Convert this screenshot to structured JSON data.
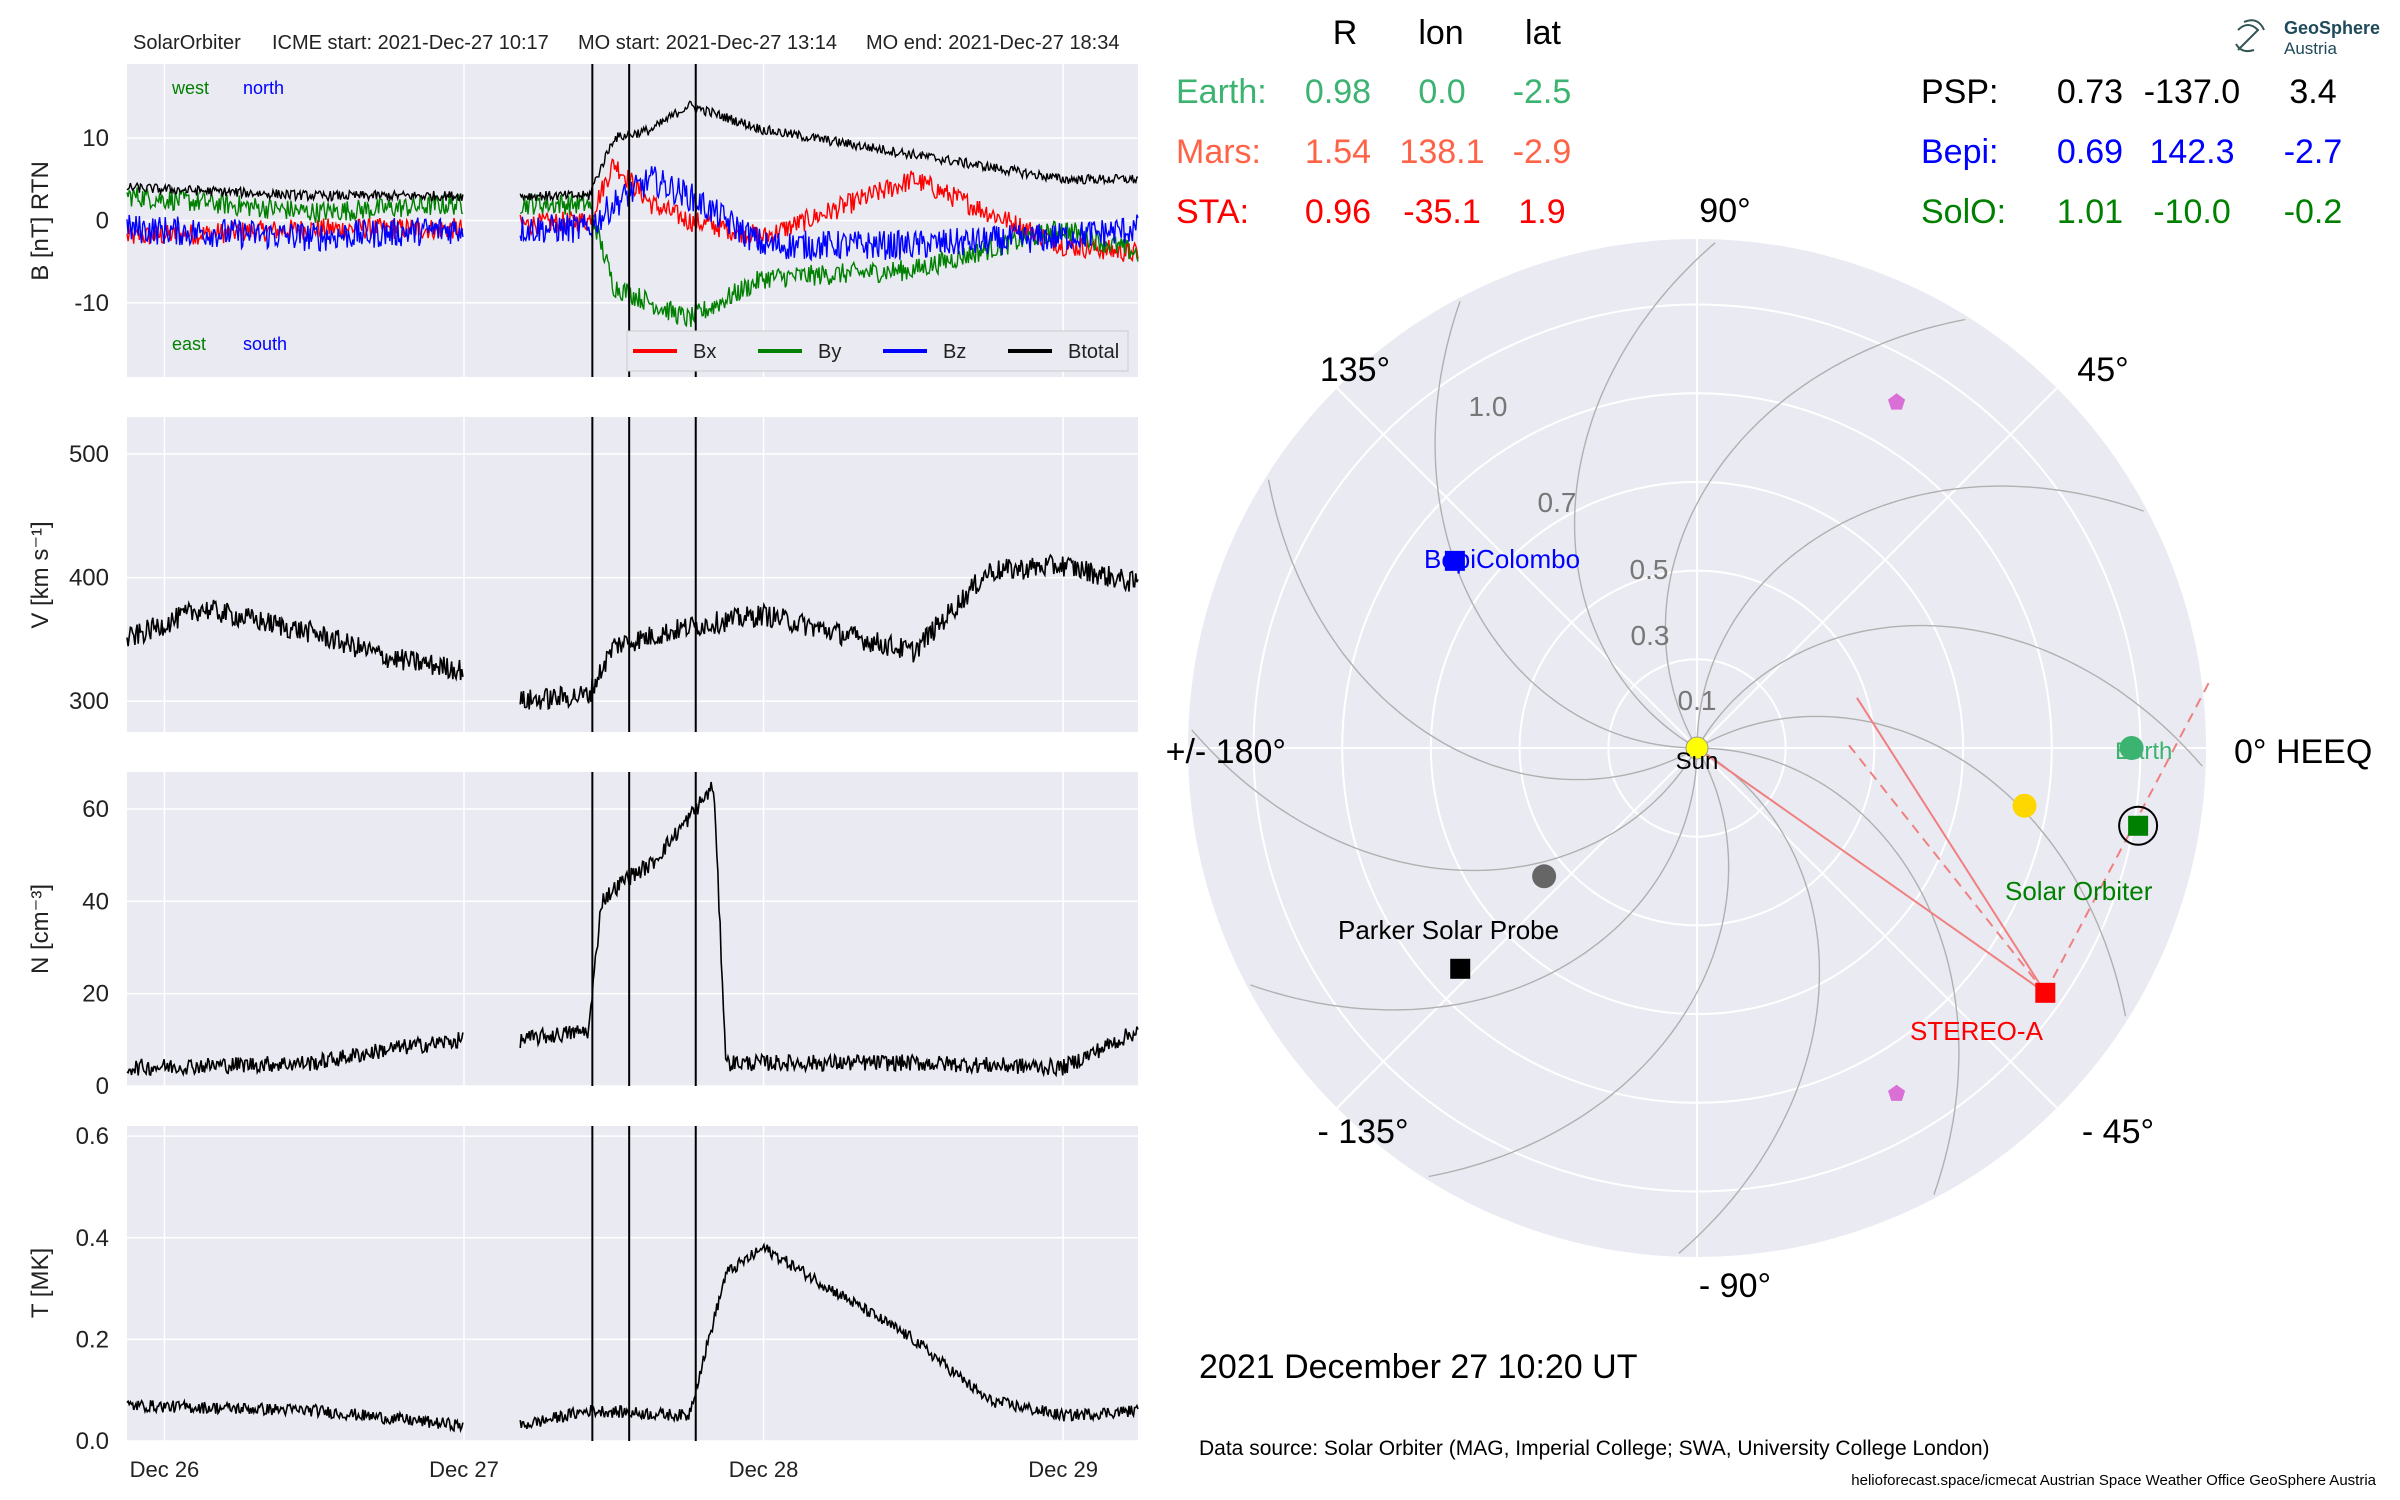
{
  "colors": {
    "bx": "#ff0000",
    "by": "#008000",
    "bz": "#0000ff",
    "btotal": "#000000",
    "earth": "#3cb371",
    "mars": "#ff6347",
    "sta": "#ff0000",
    "psp": "#000000",
    "bepi": "#0000ff",
    "solo": "#008000",
    "panel_bg": "#eaeaf2",
    "grid": "#ffffff",
    "sun": "#ffff00"
  },
  "insitu": {
    "header": {
      "spacecraft": "SolarOrbiter",
      "icme_start": "ICME start: 2021-Dec-27 10:17",
      "mo_start": "MO start: 2021-Dec-27 13:14",
      "mo_end": "MO end: 2021-Dec-27 18:34"
    },
    "labels": {
      "west": "west",
      "north": "north",
      "east": "east",
      "south": "south"
    }
  },
  "polar": {
    "col_headers": [
      "R",
      "lon",
      "lat"
    ],
    "left_table": [
      {
        "name": "Earth:",
        "R": "0.98",
        "lon": "0.0",
        "lat": "-2.5",
        "color_key": "earth"
      },
      {
        "name": "Mars:",
        "R": "1.54",
        "lon": "138.1",
        "lat": "-2.9",
        "color_key": "mars"
      },
      {
        "name": "STA:",
        "R": "0.96",
        "lon": "-35.1",
        "lat": "1.9",
        "color_key": "sta"
      }
    ],
    "right_table": [
      {
        "name": "PSP:",
        "R": "0.73",
        "lon": "-137.0",
        "lat": "3.4",
        "color_key": "psp"
      },
      {
        "name": "Bepi:",
        "R": "0.69",
        "lon": "142.3",
        "lat": "-2.7",
        "color_key": "bepi"
      },
      {
        "name": "SolO:",
        "R": "1.01",
        "lon": "-10.0",
        "lat": "-0.2",
        "color_key": "solo"
      }
    ],
    "angle_labels": {
      "a90": "90°",
      "a45": "45°",
      "a0": "0° HEEQ",
      "am45": "- 45°",
      "am90": "- 90°",
      "am135": "- 135°",
      "a180": "+/- 180°",
      "a135": "135°"
    },
    "radial_labels": [
      "0.1",
      "0.3",
      "0.5",
      "0.7",
      "1.0"
    ],
    "bodies": {
      "sun": "Sun",
      "bepi": "BepiColombo",
      "earth": "Earth",
      "solo": "Solar Orbiter",
      "psp": "Parker Solar Probe",
      "sta": "STEREO-A"
    },
    "timestamp": "2021 December 27  10:20 UT"
  },
  "branding": {
    "line1": "GeoSphere",
    "line2": "Austria"
  },
  "footer": {
    "source": "Data source: Solar Orbiter (MAG, Imperial College; SWA, University College London)",
    "credits": "helioforecast.space/icmecat   Austrian Space Weather Office   GeoSphere Austria"
  },
  "chart_data": [
    {
      "type": "line",
      "title": "",
      "ylabel": "B [nT] RTN",
      "ylim": [
        -19,
        19
      ],
      "yticks": [
        -10,
        0,
        10
      ],
      "xlim_days": [
        "2021-12-25T21:00",
        "2021-12-29T06:00"
      ],
      "xticks": [
        "Dec 26",
        "Dec 27",
        "Dec 28",
        "Dec 29"
      ],
      "event_lines": [
        "2021-12-27T10:17",
        "2021-12-27T13:14",
        "2021-12-27T18:34"
      ],
      "legend": "lower right",
      "data_gap": [
        "2021-12-27T00:00",
        "2021-12-27T04:30"
      ],
      "series": [
        {
          "name": "Bx",
          "color_key": "bx",
          "x": [
            "2021-12-25T21:00",
            "2021-12-26T12:00",
            "2021-12-27T00:00",
            "2021-12-27T10:00",
            "2021-12-27T12:00",
            "2021-12-27T15:00",
            "2021-12-27T18:00",
            "2021-12-28T00:00",
            "2021-12-28T12:00",
            "2021-12-29T00:00",
            "2021-12-29T06:00"
          ],
          "y": [
            -2,
            -1,
            -1,
            0,
            7,
            2,
            0,
            -2,
            5,
            -3,
            -4
          ]
        },
        {
          "name": "By",
          "color_key": "by",
          "x": [
            "2021-12-25T21:00",
            "2021-12-26T12:00",
            "2021-12-27T00:00",
            "2021-12-27T10:00",
            "2021-12-27T12:00",
            "2021-12-27T15:00",
            "2021-12-27T18:00",
            "2021-12-28T00:00",
            "2021-12-28T12:00",
            "2021-12-29T00:00",
            "2021-12-29T06:00"
          ],
          "y": [
            3,
            1,
            2,
            2,
            -8,
            -10,
            -12,
            -7,
            -6,
            -1,
            -4
          ]
        },
        {
          "name": "Bz",
          "color_key": "bz",
          "x": [
            "2021-12-25T21:00",
            "2021-12-26T12:00",
            "2021-12-27T00:00",
            "2021-12-27T10:00",
            "2021-12-27T12:00",
            "2021-12-27T15:00",
            "2021-12-27T18:00",
            "2021-12-28T00:00",
            "2021-12-28T12:00",
            "2021-12-29T00:00",
            "2021-12-29T06:00"
          ],
          "y": [
            -1,
            -2,
            -1,
            -1,
            2,
            5,
            3,
            -3,
            -3,
            -2,
            -1
          ]
        },
        {
          "name": "Btotal",
          "color_key": "btotal",
          "x": [
            "2021-12-25T21:00",
            "2021-12-26T12:00",
            "2021-12-27T00:00",
            "2021-12-27T10:00",
            "2021-12-27T12:00",
            "2021-12-27T15:00",
            "2021-12-27T18:00",
            "2021-12-28T00:00",
            "2021-12-28T12:00",
            "2021-12-29T00:00",
            "2021-12-29T06:00"
          ],
          "y": [
            4,
            3,
            3,
            3,
            10,
            11,
            14,
            11,
            8,
            5,
            5
          ]
        }
      ]
    },
    {
      "type": "line",
      "title": "",
      "ylabel": "V [km s⁻¹]",
      "ylim": [
        275,
        530
      ],
      "yticks": [
        300,
        400,
        500
      ],
      "xlim_days": [
        "2021-12-25T21:00",
        "2021-12-29T06:00"
      ],
      "xticks": [
        "Dec 26",
        "Dec 27",
        "Dec 28",
        "Dec 29"
      ],
      "data_gap": [
        "2021-12-27T00:00",
        "2021-12-27T04:30"
      ],
      "series": [
        {
          "name": "",
          "color_key": "btotal",
          "x": [
            "2021-12-25T21:00",
            "2021-12-26T03:00",
            "2021-12-26T12:00",
            "2021-12-26T18:00",
            "2021-12-27T00:00",
            "2021-12-27T04:30",
            "2021-12-27T10:00",
            "2021-12-27T12:00",
            "2021-12-27T18:00",
            "2021-12-28T00:00",
            "2021-12-28T12:00",
            "2021-12-28T18:00",
            "2021-12-29T00:00",
            "2021-12-29T06:00"
          ],
          "y": [
            350,
            375,
            355,
            335,
            325,
            300,
            305,
            345,
            360,
            370,
            340,
            405,
            410,
            395
          ]
        }
      ]
    },
    {
      "type": "line",
      "title": "",
      "ylabel": "N [cm⁻³]",
      "ylim": [
        0,
        68
      ],
      "yticks": [
        0,
        20,
        40,
        60
      ],
      "xlim_days": [
        "2021-12-25T21:00",
        "2021-12-29T06:00"
      ],
      "xticks": [
        "Dec 26",
        "Dec 27",
        "Dec 28",
        "Dec 29"
      ],
      "data_gap": [
        "2021-12-27T00:00",
        "2021-12-27T04:30"
      ],
      "series": [
        {
          "name": "",
          "color_key": "btotal",
          "x": [
            "2021-12-25T21:00",
            "2021-12-26T12:00",
            "2021-12-26T18:00",
            "2021-12-27T00:00",
            "2021-12-27T04:30",
            "2021-12-27T10:00",
            "2021-12-27T11:00",
            "2021-12-27T13:00",
            "2021-12-27T15:00",
            "2021-12-27T18:00",
            "2021-12-27T20:00",
            "2021-12-27T21:00",
            "2021-12-28T12:00",
            "2021-12-29T00:00",
            "2021-12-29T06:00"
          ],
          "y": [
            4,
            5,
            8,
            10,
            10,
            12,
            40,
            45,
            48,
            58,
            65,
            5,
            5,
            4,
            12
          ]
        }
      ]
    },
    {
      "type": "line",
      "title": "",
      "ylabel": "T [MK]",
      "ylim": [
        0,
        0.62
      ],
      "yticks": [
        0.0,
        0.2,
        0.4,
        0.6
      ],
      "xlim_days": [
        "2021-12-25T21:00",
        "2021-12-29T06:00"
      ],
      "xticks": [
        "Dec 26",
        "Dec 27",
        "Dec 28",
        "Dec 29"
      ],
      "data_gap": [
        "2021-12-27T00:00",
        "2021-12-27T04:30"
      ],
      "series": [
        {
          "name": "",
          "color_key": "btotal",
          "x": [
            "2021-12-25T21:00",
            "2021-12-26T12:00",
            "2021-12-27T00:00",
            "2021-12-27T04:30",
            "2021-12-27T10:00",
            "2021-12-27T18:00",
            "2021-12-27T21:00",
            "2021-12-28T00:00",
            "2021-12-28T12:00",
            "2021-12-28T18:00",
            "2021-12-29T00:00",
            "2021-12-29T06:00"
          ],
          "y": [
            0.07,
            0.06,
            0.03,
            0.03,
            0.06,
            0.05,
            0.33,
            0.38,
            0.2,
            0.08,
            0.05,
            0.06
          ]
        }
      ]
    },
    {
      "type": "scatter",
      "title": "",
      "coordinate_system": "polar HEEQ, r in AU",
      "rlim": [
        0,
        1.15
      ],
      "points": [
        {
          "name": "Sun",
          "r": 0.0,
          "lon": 0.0,
          "color_key": "sun",
          "marker": "circle"
        },
        {
          "name": "BepiColombo",
          "r": 0.69,
          "lon": 142.3,
          "color_key": "bepi",
          "marker": "square"
        },
        {
          "name": "Earth",
          "r": 0.98,
          "lon": 0.0,
          "color_key": "earth",
          "marker": "circle"
        },
        {
          "name": "Solar Orbiter",
          "r": 1.01,
          "lon": -10.0,
          "color_key": "solo",
          "marker": "square"
        },
        {
          "name": "Parker Solar Probe",
          "r": 0.73,
          "lon": -137.0,
          "color_key": "psp",
          "marker": "square"
        },
        {
          "name": "STEREO-A",
          "r": 0.96,
          "lon": -35.1,
          "color_key": "sta",
          "marker": "square"
        },
        {
          "name": "",
          "r": 0.75,
          "lon": -10.0,
          "color": "#ffd700",
          "marker": "circle"
        },
        {
          "name": "",
          "r": 0.45,
          "lon": -140.0,
          "color": "#666666",
          "marker": "circle"
        },
        {
          "name": "",
          "r": 0.9,
          "lon": 60.0,
          "color": "#da70d6",
          "marker": "pentagon"
        },
        {
          "name": "",
          "r": 0.9,
          "lon": -60.0,
          "color": "#da70d6",
          "marker": "pentagon"
        }
      ]
    }
  ]
}
